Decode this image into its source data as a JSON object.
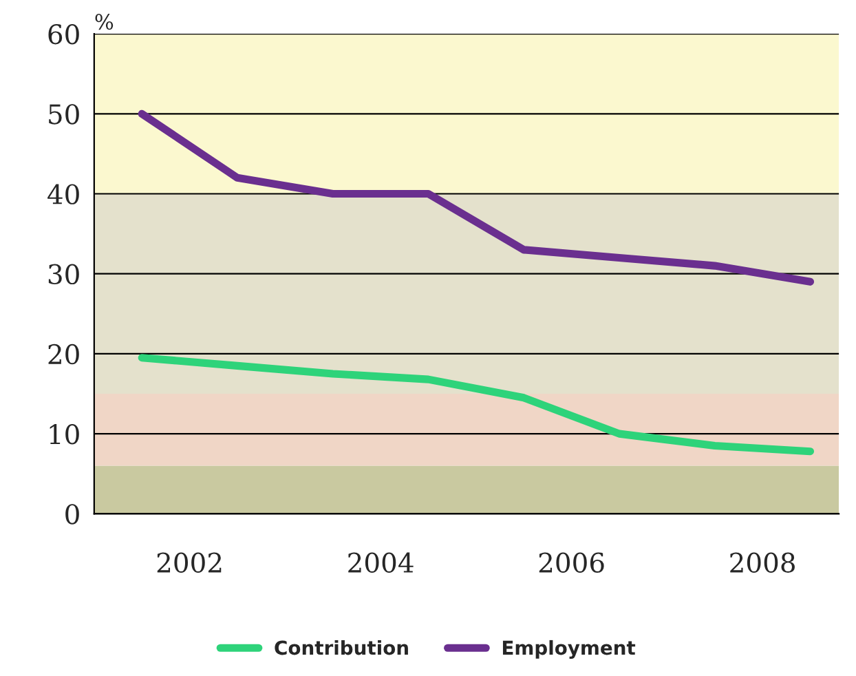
{
  "chart_data": {
    "type": "line",
    "ylabel": "%",
    "x": [
      2001.5,
      2002.5,
      2003.5,
      2004.5,
      2005.5,
      2006.5,
      2007.5,
      2008.5
    ],
    "series": [
      {
        "name": "Contribution",
        "color": "#2ed37a",
        "values": [
          19.5,
          18.5,
          17.5,
          16.8,
          14.5,
          10,
          8.5,
          7.8
        ]
      },
      {
        "name": "Employment",
        "color": "#6a2f8f",
        "values": [
          50,
          42,
          40,
          40,
          33,
          32,
          31,
          29
        ]
      }
    ],
    "xlim": [
      2001,
      2008.8
    ],
    "xticks": [
      2002,
      2004,
      2006,
      2008
    ],
    "ylim": [
      0,
      60
    ],
    "yticks": [
      0,
      10,
      20,
      30,
      40,
      50,
      60
    ],
    "bands": [
      {
        "axis": "y",
        "from": 0,
        "to": 6,
        "color": "#c9c9a0"
      },
      {
        "axis": "y",
        "from": 6,
        "to": 15,
        "color": "#f0d6c6"
      },
      {
        "axis": "y",
        "from": 15,
        "to": 40,
        "color": "#e4e1cc"
      },
      {
        "axis": "y",
        "from": 40,
        "to": 60,
        "color": "#fbf8cf"
      }
    ],
    "grid": "y",
    "legend": "bottom",
    "line_style": "solid"
  }
}
